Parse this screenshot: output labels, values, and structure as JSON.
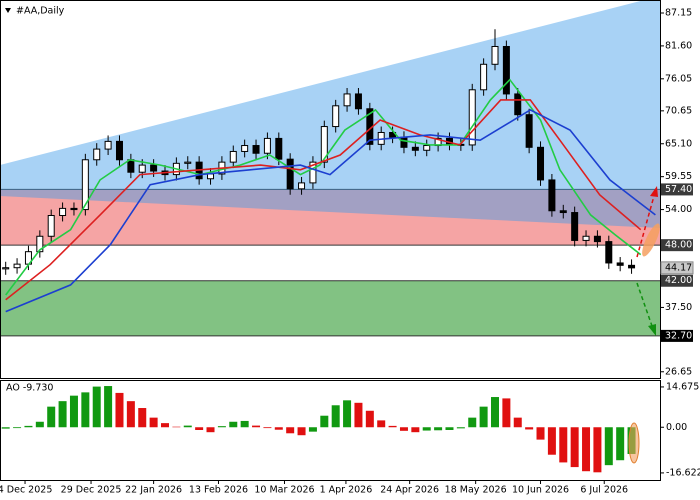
{
  "chart_data": {
    "type": "candlestick",
    "title": "#AA,Daily",
    "open": [
      44.0,
      44.2,
      44.8,
      46.9,
      49.5,
      53.0,
      54.2,
      54.0,
      62.4,
      64.2,
      65.5,
      62.4,
      60.3,
      61.5,
      60.5,
      59.9,
      61.8,
      62.0,
      59.2,
      60.0,
      62.0,
      63.8,
      64.8,
      63.5,
      66.0,
      62.5,
      57.5,
      58.5,
      62.0,
      68.0,
      71.5,
      73.5,
      71.0,
      65.0,
      67.0,
      66.2,
      64.5,
      64.0,
      64.8,
      66.0,
      65.0,
      64.9,
      74.2,
      78.5,
      81.5,
      73.5,
      70.0,
      64.5,
      59.0,
      53.8,
      53.5,
      48.8,
      49.5,
      48.6,
      45.0,
      44.6
    ],
    "high": [
      45.2,
      45.8,
      47.9,
      50.5,
      54.0,
      55.2,
      55.2,
      63.4,
      65.2,
      66.5,
      66.5,
      63.4,
      62.5,
      62.5,
      61.5,
      62.8,
      63.0,
      63.0,
      61.0,
      63.0,
      64.8,
      65.8,
      65.8,
      67.0,
      67.0,
      63.5,
      59.5,
      63.0,
      69.0,
      72.5,
      74.5,
      74.5,
      72.0,
      68.0,
      68.0,
      67.2,
      65.5,
      65.8,
      67.0,
      67.0,
      66.0,
      75.2,
      79.5,
      84.4,
      82.5,
      74.5,
      71.0,
      65.5,
      60.0,
      54.8,
      54.5,
      50.5,
      50.5,
      49.6,
      46.0,
      45.6
    ],
    "low": [
      43.0,
      43.2,
      43.8,
      45.9,
      48.5,
      52.0,
      53.0,
      53.0,
      61.4,
      63.2,
      61.4,
      59.3,
      59.3,
      59.5,
      58.9,
      58.9,
      60.8,
      58.2,
      58.2,
      59.0,
      61.0,
      62.8,
      62.5,
      62.5,
      61.5,
      56.5,
      56.5,
      57.5,
      61.0,
      67.0,
      70.5,
      70.0,
      64.0,
      64.0,
      65.2,
      63.5,
      63.0,
      63.0,
      63.8,
      64.0,
      63.9,
      63.9,
      73.2,
      77.5,
      72.5,
      69.0,
      63.5,
      58.0,
      52.8,
      52.5,
      47.8,
      47.8,
      47.6,
      44.0,
      43.6,
      43.17
    ],
    "close": [
      44.2,
      44.8,
      46.9,
      49.5,
      53.0,
      54.2,
      54.0,
      62.4,
      64.2,
      65.5,
      62.4,
      60.3,
      61.5,
      60.5,
      59.9,
      61.8,
      62.0,
      59.2,
      60.0,
      62.0,
      63.8,
      64.8,
      63.5,
      66.0,
      62.5,
      57.5,
      58.5,
      62.0,
      68.0,
      71.5,
      73.5,
      71.0,
      65.0,
      67.0,
      66.2,
      64.5,
      64.0,
      64.8,
      66.0,
      65.0,
      64.9,
      74.2,
      78.5,
      81.5,
      73.5,
      70.0,
      64.5,
      59.0,
      53.8,
      53.5,
      48.8,
      49.5,
      48.6,
      45.0,
      44.6,
      44.17
    ],
    "up_color": "#ffffff",
    "down_color": "#000000",
    "xlim": [
      -0.5,
      57.5
    ],
    "ylim": [
      25.6,
      89.34
    ],
    "yticks": [
      87.15,
      {
        "value": 81.6,
        "label": "81.60"
      },
      76.05,
      70.65,
      {
        "value": 65.1,
        "label": "65.10"
      },
      59.55,
      {
        "value": 54.0,
        "label": "54.00"
      },
      {
        "value": 37.5,
        "label": "37.50"
      },
      26.65
    ],
    "xticks": [
      {
        "value": 1.7,
        "label": "4 Dec 2025"
      },
      {
        "value": 7.5,
        "label": "29 Dec 2025"
      },
      {
        "value": 13.0,
        "label": "22 Jan 2026"
      },
      {
        "value": 18.7,
        "label": "13 Feb 2026"
      },
      {
        "value": 24.5,
        "label": "10 Mar 2026"
      },
      {
        "value": 29.9,
        "label": "1 Apr 2026"
      },
      {
        "value": 35.5,
        "label": "24 Apr 2026"
      },
      {
        "value": 41.3,
        "label": "18 May 2026"
      },
      {
        "value": 47.0,
        "label": "10 Jun 2026"
      },
      {
        "value": 52.6,
        "label": "6 Jul 2026"
      }
    ],
    "lines": [
      {
        "color": "#22cc44",
        "x": [
          0,
          3,
          5.7,
          8.3,
          10.9,
          13.6,
          17.1,
          20.6,
          23.2,
          25.9,
          27.6,
          29.8,
          32.5,
          34.7,
          37.3,
          39.9,
          42.6,
          44.3,
          47,
          48.7,
          51.4,
          53.6,
          55.8
        ],
        "values": [
          39.6,
          47.2,
          50.6,
          59,
          62.4,
          61.5,
          59.9,
          61.5,
          63.2,
          59.9,
          61.5,
          67.4,
          70.8,
          65.7,
          64.9,
          64.9,
          72.5,
          75.9,
          69.1,
          60.7,
          53.1,
          49.7,
          46.4
        ]
      },
      {
        "color": "#dd2020",
        "x": [
          0,
          3.9,
          8.3,
          11.8,
          17.1,
          22.4,
          25.9,
          29.4,
          32.9,
          36.4,
          39.9,
          43.5,
          46.1,
          48.7,
          52.2,
          55.8
        ],
        "values": [
          38.8,
          44.7,
          53.1,
          59.9,
          60.7,
          61.5,
          60.7,
          63.2,
          69.1,
          66.6,
          64.9,
          72.5,
          72.5,
          65.7,
          56.5,
          50.6
        ]
      },
      {
        "color": "#1c3fd0",
        "x": [
          0,
          5.7,
          9.2,
          12.7,
          17.1,
          21.5,
          25.9,
          28.5,
          32,
          37.3,
          41.7,
          46.1,
          49.6,
          53.1,
          57.1
        ],
        "values": [
          36.8,
          41.3,
          48.1,
          58.2,
          59.9,
          60.7,
          61.5,
          59.9,
          65.7,
          66.6,
          65.7,
          70.8,
          67.4,
          59,
          53.1
        ]
      }
    ],
    "resistance_zone": {
      "top": {
        "value": 57.4,
        "label": "57.40"
      },
      "bottom": {
        "value": 48.0,
        "label": "48.00"
      },
      "color": "#f5a4a4"
    },
    "support_zone": {
      "top": {
        "value": 42.0,
        "label": "42.00"
      },
      "bottom": {
        "value": 32.7,
        "label": "32.70"
      },
      "color": "#82c283"
    },
    "current_price": 44.17,
    "indicator": {
      "type": "bar",
      "title": "AO -9.730",
      "values": [
        -0.5,
        -0.3,
        0.5,
        2.0,
        7.5,
        9.5,
        11.5,
        12.7,
        14.8,
        15.0,
        12.5,
        9.5,
        7.0,
        3.5,
        1.5,
        0.2,
        0.6,
        -1.0,
        -1.8,
        0.4,
        2.0,
        2.3,
        0.6,
        -0.3,
        -0.9,
        -2.2,
        -2.9,
        -1.6,
        4.2,
        8.0,
        9.8,
        8.9,
        6.0,
        2.5,
        0.5,
        -1.3,
        -1.8,
        -1.2,
        -1.1,
        -1.0,
        -0.4,
        3.5,
        7.5,
        11.0,
        10.5,
        3.5,
        -0.8,
        -4.5,
        -10.0,
        -12.8,
        -14.5,
        -16.0,
        -16.4,
        -13.8,
        -12.0,
        -9.73
      ],
      "up_color": "#119911",
      "down_color": "#e01010",
      "ylim": [
        -19.2,
        17.2
      ],
      "yticks": [
        14.675,
        {
          "value": 0,
          "label": "0.00"
        },
        -16.622
      ]
    }
  }
}
